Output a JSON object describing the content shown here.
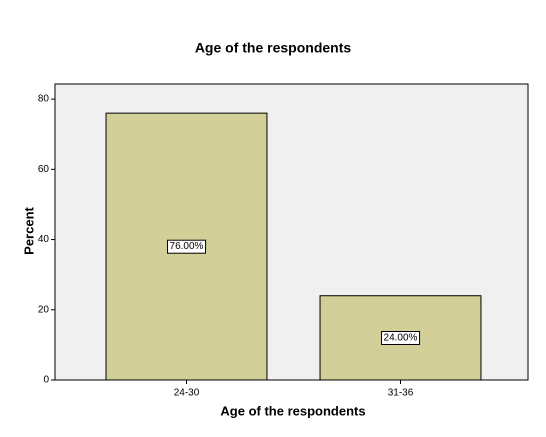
{
  "chart_data": {
    "type": "bar",
    "title": "Age of the respondents",
    "x_label": "Age of the respondents",
    "y_label": "Percent",
    "categories": [
      "24-30",
      "31-36"
    ],
    "values": [
      76,
      24
    ],
    "value_labels": [
      "76.00%",
      "24.00%"
    ],
    "color": "#d3cf98",
    "ylim": [
      0,
      84.3
    ],
    "yticks": [
      0,
      20,
      40,
      60,
      80
    ],
    "grid": false
  }
}
